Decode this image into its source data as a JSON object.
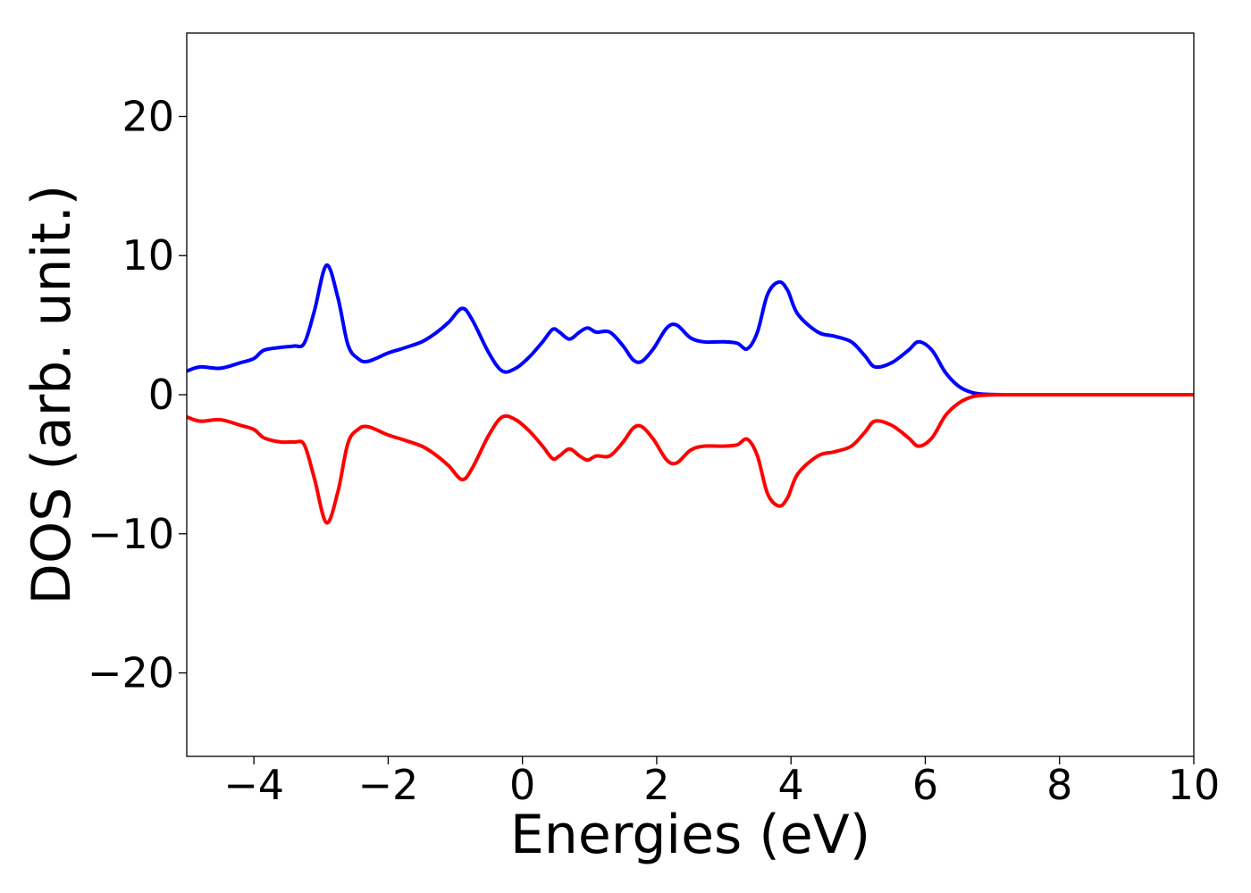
{
  "chart_data": {
    "type": "line",
    "title": "",
    "xlabel": "Energies (eV)",
    "ylabel": "DOS (arb. unit.)",
    "xlim": [
      -5,
      10
    ],
    "ylim": [
      -26,
      26
    ],
    "xticks": [
      -4,
      -2,
      0,
      2,
      4,
      6,
      8,
      10
    ],
    "xtick_labels": [
      "−4",
      "−2",
      "0",
      "2",
      "4",
      "6",
      "8",
      "10"
    ],
    "yticks": [
      20,
      10,
      0,
      -10,
      -20
    ],
    "ytick_labels": [
      "20",
      "10",
      "0",
      "−10",
      "−20"
    ],
    "grid": false,
    "legend": "none",
    "series": [
      {
        "color": "#0000ff",
        "x": [
          -5.0,
          -4.8,
          -4.5,
          -4.2,
          -4.0,
          -3.85,
          -3.6,
          -3.4,
          -3.25,
          -3.1,
          -2.92,
          -2.75,
          -2.6,
          -2.45,
          -2.3,
          -2.0,
          -1.8,
          -1.5,
          -1.3,
          -1.1,
          -0.9,
          -0.75,
          -0.5,
          -0.3,
          -0.1,
          0.1,
          0.3,
          0.45,
          0.55,
          0.7,
          0.85,
          0.97,
          1.1,
          1.3,
          1.5,
          1.65,
          1.78,
          1.95,
          2.15,
          2.3,
          2.5,
          2.7,
          3.0,
          3.2,
          3.35,
          3.5,
          3.65,
          3.82,
          3.95,
          4.1,
          4.4,
          4.65,
          4.9,
          5.1,
          5.25,
          5.5,
          5.75,
          5.9,
          6.1,
          6.3,
          6.5,
          6.7,
          6.9,
          7.2,
          8.0,
          9.0,
          10.0
        ],
        "y": [
          1.7,
          2.0,
          1.9,
          2.3,
          2.6,
          3.2,
          3.4,
          3.5,
          3.7,
          6.0,
          9.3,
          7.0,
          3.6,
          2.6,
          2.4,
          3.0,
          3.3,
          3.8,
          4.4,
          5.2,
          6.2,
          5.4,
          3.0,
          1.7,
          1.9,
          2.7,
          3.8,
          4.7,
          4.5,
          4.0,
          4.5,
          4.8,
          4.5,
          4.5,
          3.5,
          2.5,
          2.4,
          3.3,
          4.8,
          5.0,
          4.1,
          3.8,
          3.8,
          3.7,
          3.3,
          4.5,
          7.2,
          8.1,
          7.5,
          5.8,
          4.5,
          4.2,
          3.8,
          2.8,
          2.0,
          2.3,
          3.2,
          3.8,
          3.2,
          1.6,
          0.6,
          0.15,
          0.03,
          0.0,
          0.0,
          0.0,
          0.0
        ]
      },
      {
        "color": "#ff0000",
        "x": [
          -5.0,
          -4.8,
          -4.5,
          -4.2,
          -4.0,
          -3.85,
          -3.6,
          -3.4,
          -3.25,
          -3.1,
          -2.92,
          -2.75,
          -2.6,
          -2.45,
          -2.3,
          -2.0,
          -1.8,
          -1.5,
          -1.3,
          -1.1,
          -0.9,
          -0.75,
          -0.5,
          -0.3,
          -0.1,
          0.1,
          0.3,
          0.45,
          0.55,
          0.7,
          0.85,
          0.97,
          1.1,
          1.3,
          1.5,
          1.65,
          1.78,
          1.95,
          2.15,
          2.3,
          2.5,
          2.7,
          3.0,
          3.2,
          3.35,
          3.5,
          3.65,
          3.82,
          3.95,
          4.1,
          4.4,
          4.65,
          4.9,
          5.1,
          5.25,
          5.5,
          5.75,
          5.9,
          6.1,
          6.3,
          6.5,
          6.7,
          6.9,
          7.2,
          8.0,
          9.0,
          10.0
        ],
        "y": [
          -1.6,
          -1.9,
          -1.8,
          -2.2,
          -2.5,
          -3.1,
          -3.4,
          -3.4,
          -3.6,
          -6.0,
          -9.2,
          -7.0,
          -3.5,
          -2.5,
          -2.3,
          -2.9,
          -3.2,
          -3.7,
          -4.3,
          -5.1,
          -6.1,
          -5.3,
          -2.9,
          -1.6,
          -1.8,
          -2.6,
          -3.7,
          -4.6,
          -4.4,
          -3.9,
          -4.4,
          -4.7,
          -4.4,
          -4.4,
          -3.4,
          -2.4,
          -2.3,
          -3.2,
          -4.7,
          -4.9,
          -4.0,
          -3.7,
          -3.7,
          -3.6,
          -3.2,
          -4.4,
          -7.1,
          -8.0,
          -7.4,
          -5.7,
          -4.4,
          -4.1,
          -3.7,
          -2.7,
          -1.9,
          -2.2,
          -3.1,
          -3.7,
          -3.1,
          -1.5,
          -0.6,
          -0.15,
          -0.03,
          0.0,
          0.0,
          0.0,
          0.0
        ]
      }
    ]
  }
}
